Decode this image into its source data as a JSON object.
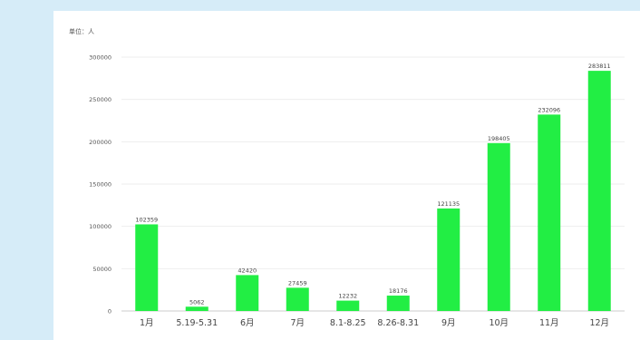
{
  "chart_data": {
    "type": "bar",
    "unit_label": "单位：人",
    "categories": [
      "1月",
      "5.19-5.31",
      "6月",
      "7月",
      "8.1-8.25",
      "8.26-8.31",
      "9月",
      "10月",
      "11月",
      "12月"
    ],
    "values": [
      102359,
      5062,
      42420,
      27459,
      12232,
      18176,
      121135,
      198405,
      232096,
      283811
    ],
    "data_labels": [
      "102359",
      "5062",
      "42420",
      "27459",
      "12232",
      "18176",
      "121135",
      "198405",
      "232096",
      "283811"
    ],
    "yticks": [
      0,
      50000,
      100000,
      150000,
      200000,
      250000,
      300000
    ],
    "ytick_labels": [
      "0",
      "50000",
      "100000",
      "150000",
      "200000",
      "250000",
      "300000"
    ],
    "ylim": [
      0,
      300000
    ],
    "grid": true,
    "legend": "none",
    "bar_color": "#22ee44",
    "grid_color": "#eeeeee",
    "axis_color": "#cccccc",
    "background_color": "#d6ecf8"
  }
}
